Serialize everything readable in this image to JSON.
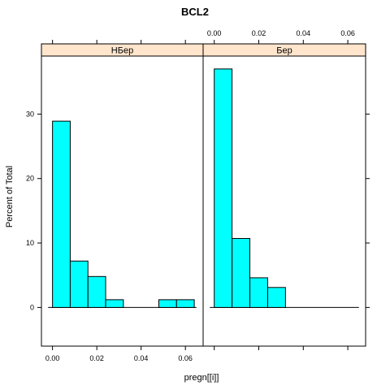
{
  "chart_data": {
    "type": "bar",
    "title": "BCL2",
    "xlabel": "pregn[[i]]",
    "ylabel": "Percent of Total",
    "xlim": [
      -0.005,
      0.068
    ],
    "ylim": [
      -6,
      39
    ],
    "x_ticks": [
      "0.00",
      "0.02",
      "0.04",
      "0.06"
    ],
    "y_ticks": [
      "0",
      "10",
      "20",
      "30"
    ],
    "bar_color": "#00ffff",
    "strip_color": "#ffe5cc",
    "panels": [
      {
        "name": "НБер",
        "bins": [
          {
            "x0": 0.0,
            "x1": 0.008,
            "value": 28.9
          },
          {
            "x0": 0.008,
            "x1": 0.016,
            "value": 7.2
          },
          {
            "x0": 0.016,
            "x1": 0.024,
            "value": 4.8
          },
          {
            "x0": 0.024,
            "x1": 0.032,
            "value": 1.2
          },
          {
            "x0": 0.048,
            "x1": 0.056,
            "value": 1.2
          },
          {
            "x0": 0.056,
            "x1": 0.064,
            "value": 1.2
          }
        ]
      },
      {
        "name": "Бер",
        "bins": [
          {
            "x0": 0.0,
            "x1": 0.008,
            "value": 37.0
          },
          {
            "x0": 0.008,
            "x1": 0.016,
            "value": 10.7
          },
          {
            "x0": 0.016,
            "x1": 0.024,
            "value": 4.6
          },
          {
            "x0": 0.024,
            "x1": 0.032,
            "value": 3.1
          }
        ]
      }
    ]
  }
}
